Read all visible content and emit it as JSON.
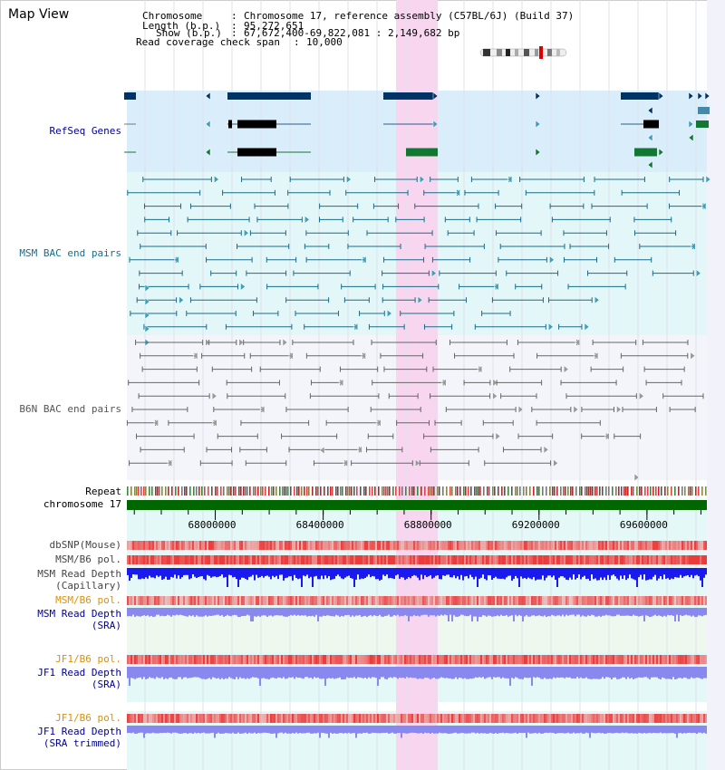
{
  "title": "Map View",
  "header": {
    "chromosome_label": "Chromosome",
    "chromosome_value": "Chromosome 17, reference assembly (C57BL/6J) (Build 37)",
    "length_label": "Length (b.p.)",
    "length_value": "95,272,651",
    "show_label": "Show (b.p.)",
    "show_value": "67,672,400-69,822,081 : 2,149,682 bp",
    "span_label": "Read coverage check span",
    "span_value": "10,000"
  },
  "tracks": {
    "refseq": "RefSeq Genes",
    "msm_bac": "MSM BAC end pairs",
    "b6n_bac": "B6N BAC end pairs",
    "repeat": "Repeat",
    "chromosome": "chromosome 17",
    "dbsnp": "dbSNP(Mouse)",
    "msm_b6_pol": "MSM/B6 pol.",
    "msm_depth_cap_1": "MSM Read Depth",
    "msm_depth_cap_2": "(Capillary)",
    "msm_b6_pol_sra": "MSM/B6 pol.",
    "msm_depth_sra_1": "MSM Read Depth",
    "msm_depth_sra_2": "(SRA)",
    "jf1_b6_pol": "JF1/B6 pol.",
    "jf1_depth_1": "JF1 Read Depth",
    "jf1_depth_2": "(SRA)",
    "jf1_b6_pol_trim": "JF1/B6 pol.",
    "jf1_trim_1": "JF1 Read Depth",
    "jf1_trim_2": "(SRA trimmed)"
  },
  "axis": {
    "ticks": [
      "68000000",
      "68400000",
      "68800000",
      "69200000",
      "69600000"
    ],
    "tick_values": [
      68000000,
      68400000,
      68800000,
      69200000,
      69600000
    ],
    "start": 67672400,
    "end": 69822081
  },
  "colors": {
    "refseq_bg": "#d9eefa",
    "msm_bg": "#e3f6f8",
    "b6n_bg": "#f3f5fb",
    "highlight": "#f8d6f0",
    "chromosome_bar": "#006600",
    "refseq_blue": "#003366",
    "msm_teal": "#1a6d8a",
    "b6n_gray": "#666666",
    "capillary_blue": "#1a1aee",
    "sra_blue": "#8888ee",
    "orange_label": "#e09000",
    "blue_label": "#000099"
  }
}
